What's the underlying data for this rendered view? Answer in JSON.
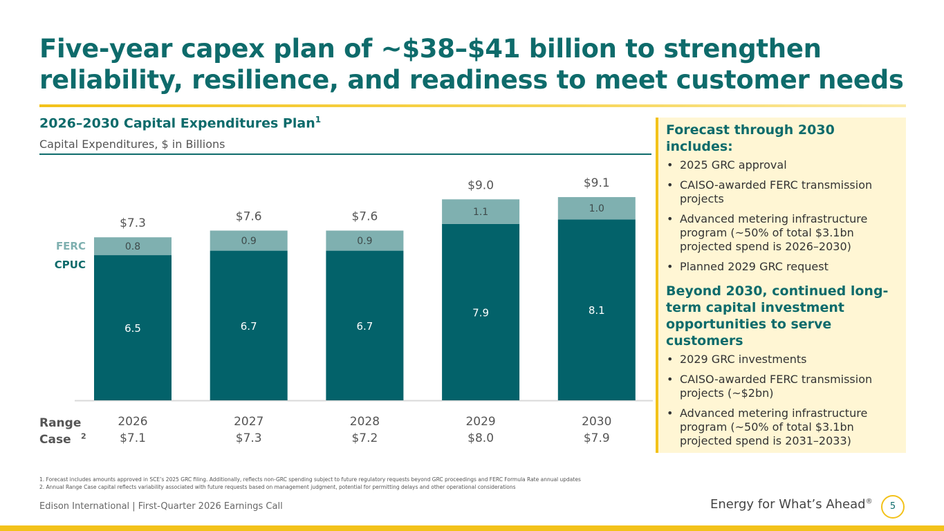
{
  "header": {
    "title_line1": "Five-year capex plan of ~$38–$41 billion to strengthen",
    "title_line2": "reliability, resilience, and readiness to meet customer needs"
  },
  "chart_header": {
    "title": "2026–2030 Capital Expenditures Plan",
    "title_sup": "1",
    "subtitle": "Capital Expenditures, $ in Billions"
  },
  "legend": {
    "ferc": "FERC",
    "cpuc": "CPUC"
  },
  "range_case": {
    "label": "Range Case",
    "sup": "2"
  },
  "colors": {
    "cpuc": "#03626a",
    "ferc": "#7fb0b0",
    "accent": "#f3c21a",
    "title": "#0e6b6b"
  },
  "chart_data": {
    "type": "bar",
    "stacked": true,
    "categories": [
      "2026",
      "2027",
      "2028",
      "2029",
      "2030"
    ],
    "series": [
      {
        "name": "CPUC",
        "values": [
          6.5,
          6.7,
          6.7,
          7.9,
          8.1
        ],
        "labels": [
          "6.5",
          "6.7",
          "6.7",
          "7.9",
          "8.1"
        ]
      },
      {
        "name": "FERC",
        "values": [
          0.8,
          0.9,
          0.9,
          1.1,
          1.0
        ],
        "labels": [
          "0.8",
          "0.9",
          "0.9",
          "1.1",
          "1.0"
        ]
      }
    ],
    "totals": [
      "$7.3",
      "$7.6",
      "$7.6",
      "$9.0",
      "$9.1"
    ],
    "range_case": [
      "$7.1",
      "$7.3",
      "$7.2",
      "$8.0",
      "$7.9"
    ],
    "title": "2026–2030 Capital Expenditures Plan",
    "ylabel": "Capital Expenditures, $ in Billions",
    "grid": false,
    "legend": "left"
  },
  "panel": {
    "heading1": "Forecast through 2030 includes:",
    "items1": [
      "2025 GRC approval",
      "CAISO-awarded FERC transmission projects",
      "Advanced metering infrastructure program (~50% of total $3.1bn projected spend is 2026–2030)",
      "Planned 2029 GRC request"
    ],
    "heading2": "Beyond 2030, continued long-term capital investment opportunities to serve customers",
    "items2": [
      "2029 GRC investments",
      "CAISO-awarded FERC transmission projects (~$2bn)",
      "Advanced metering infrastructure program (~50% of total $3.1bn projected spend is 2031–2033)"
    ]
  },
  "footnotes": [
    "1.  Forecast includes amounts approved in SCE’s 2025 GRC filing. Additionally, reflects non-GRC spending subject to future regulatory requests beyond GRC proceedings and FERC Formula Rate annual updates",
    "2.  Annual Range Case capital reflects variability associated with future requests based on management judgment, potential for permitting delays and other operational considerations"
  ],
  "footer": {
    "left": "Edison International |  First-Quarter 2026 Earnings Call",
    "tagline": "Energy for What’s Ahead",
    "tagline_mark": "®",
    "page": "5"
  }
}
